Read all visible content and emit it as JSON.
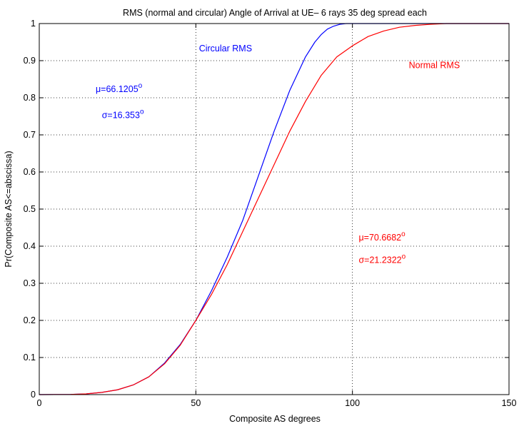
{
  "chart_data": {
    "type": "line",
    "title": "RMS (normal and circular)  Angle of Arrival at UE– 6 rays 35 deg spread each",
    "xlabel": "Composite AS degrees",
    "ylabel": "Pr(Composite AS<=abscissa)",
    "xlim": [
      0,
      150
    ],
    "ylim": [
      0,
      1
    ],
    "xticks": [
      0,
      50,
      100,
      150
    ],
    "yticks": [
      0,
      0.1,
      0.2,
      0.3,
      0.4,
      0.5,
      0.6,
      0.7,
      0.8,
      0.9,
      1
    ],
    "grid": "dotted",
    "series": [
      {
        "name": "Circular RMS",
        "color": "#0000ff",
        "x": [
          0,
          10,
          15,
          20,
          25,
          30,
          35,
          40,
          45,
          50,
          55,
          60,
          65,
          70,
          75,
          80,
          85,
          88,
          90,
          92,
          94,
          96,
          98,
          100,
          150
        ],
        "y": [
          0,
          0.0005,
          0.002,
          0.006,
          0.013,
          0.026,
          0.048,
          0.085,
          0.135,
          0.2,
          0.28,
          0.37,
          0.47,
          0.59,
          0.71,
          0.82,
          0.91,
          0.95,
          0.97,
          0.985,
          0.993,
          0.998,
          1.0,
          1.0,
          1.0
        ]
      },
      {
        "name": "Normal RMS",
        "color": "#ff0000",
        "x": [
          0,
          10,
          15,
          20,
          25,
          30,
          35,
          40,
          45,
          50,
          55,
          60,
          65,
          70,
          75,
          80,
          85,
          90,
          95,
          100,
          105,
          110,
          115,
          120,
          125,
          130,
          135,
          140,
          145,
          150
        ],
        "y": [
          0,
          0.0005,
          0.002,
          0.006,
          0.013,
          0.026,
          0.048,
          0.083,
          0.133,
          0.2,
          0.27,
          0.35,
          0.44,
          0.53,
          0.62,
          0.71,
          0.79,
          0.86,
          0.91,
          0.94,
          0.965,
          0.98,
          0.99,
          0.995,
          0.998,
          1.0,
          1.0,
          1.0,
          1.0,
          1.0
        ]
      }
    ],
    "annotations": [
      {
        "text": "Circular RMS",
        "x": 51,
        "y": 0.925,
        "color": "#0000ff"
      },
      {
        "text": "Normal RMS",
        "x": 118,
        "y": 0.88,
        "color": "#ff0000"
      },
      {
        "text": "μ=66.1205",
        "sup": "o",
        "x": 18,
        "y": 0.815,
        "color": "#0000ff"
      },
      {
        "text": "σ=16.353",
        "sup": "o",
        "x": 20,
        "y": 0.745,
        "color": "#0000ff"
      },
      {
        "text": "μ=70.6682",
        "sup": "o",
        "x": 102,
        "y": 0.415,
        "color": "#ff0000"
      },
      {
        "text": "σ=21.2322",
        "sup": "o",
        "x": 102,
        "y": 0.355,
        "color": "#ff0000"
      }
    ]
  }
}
